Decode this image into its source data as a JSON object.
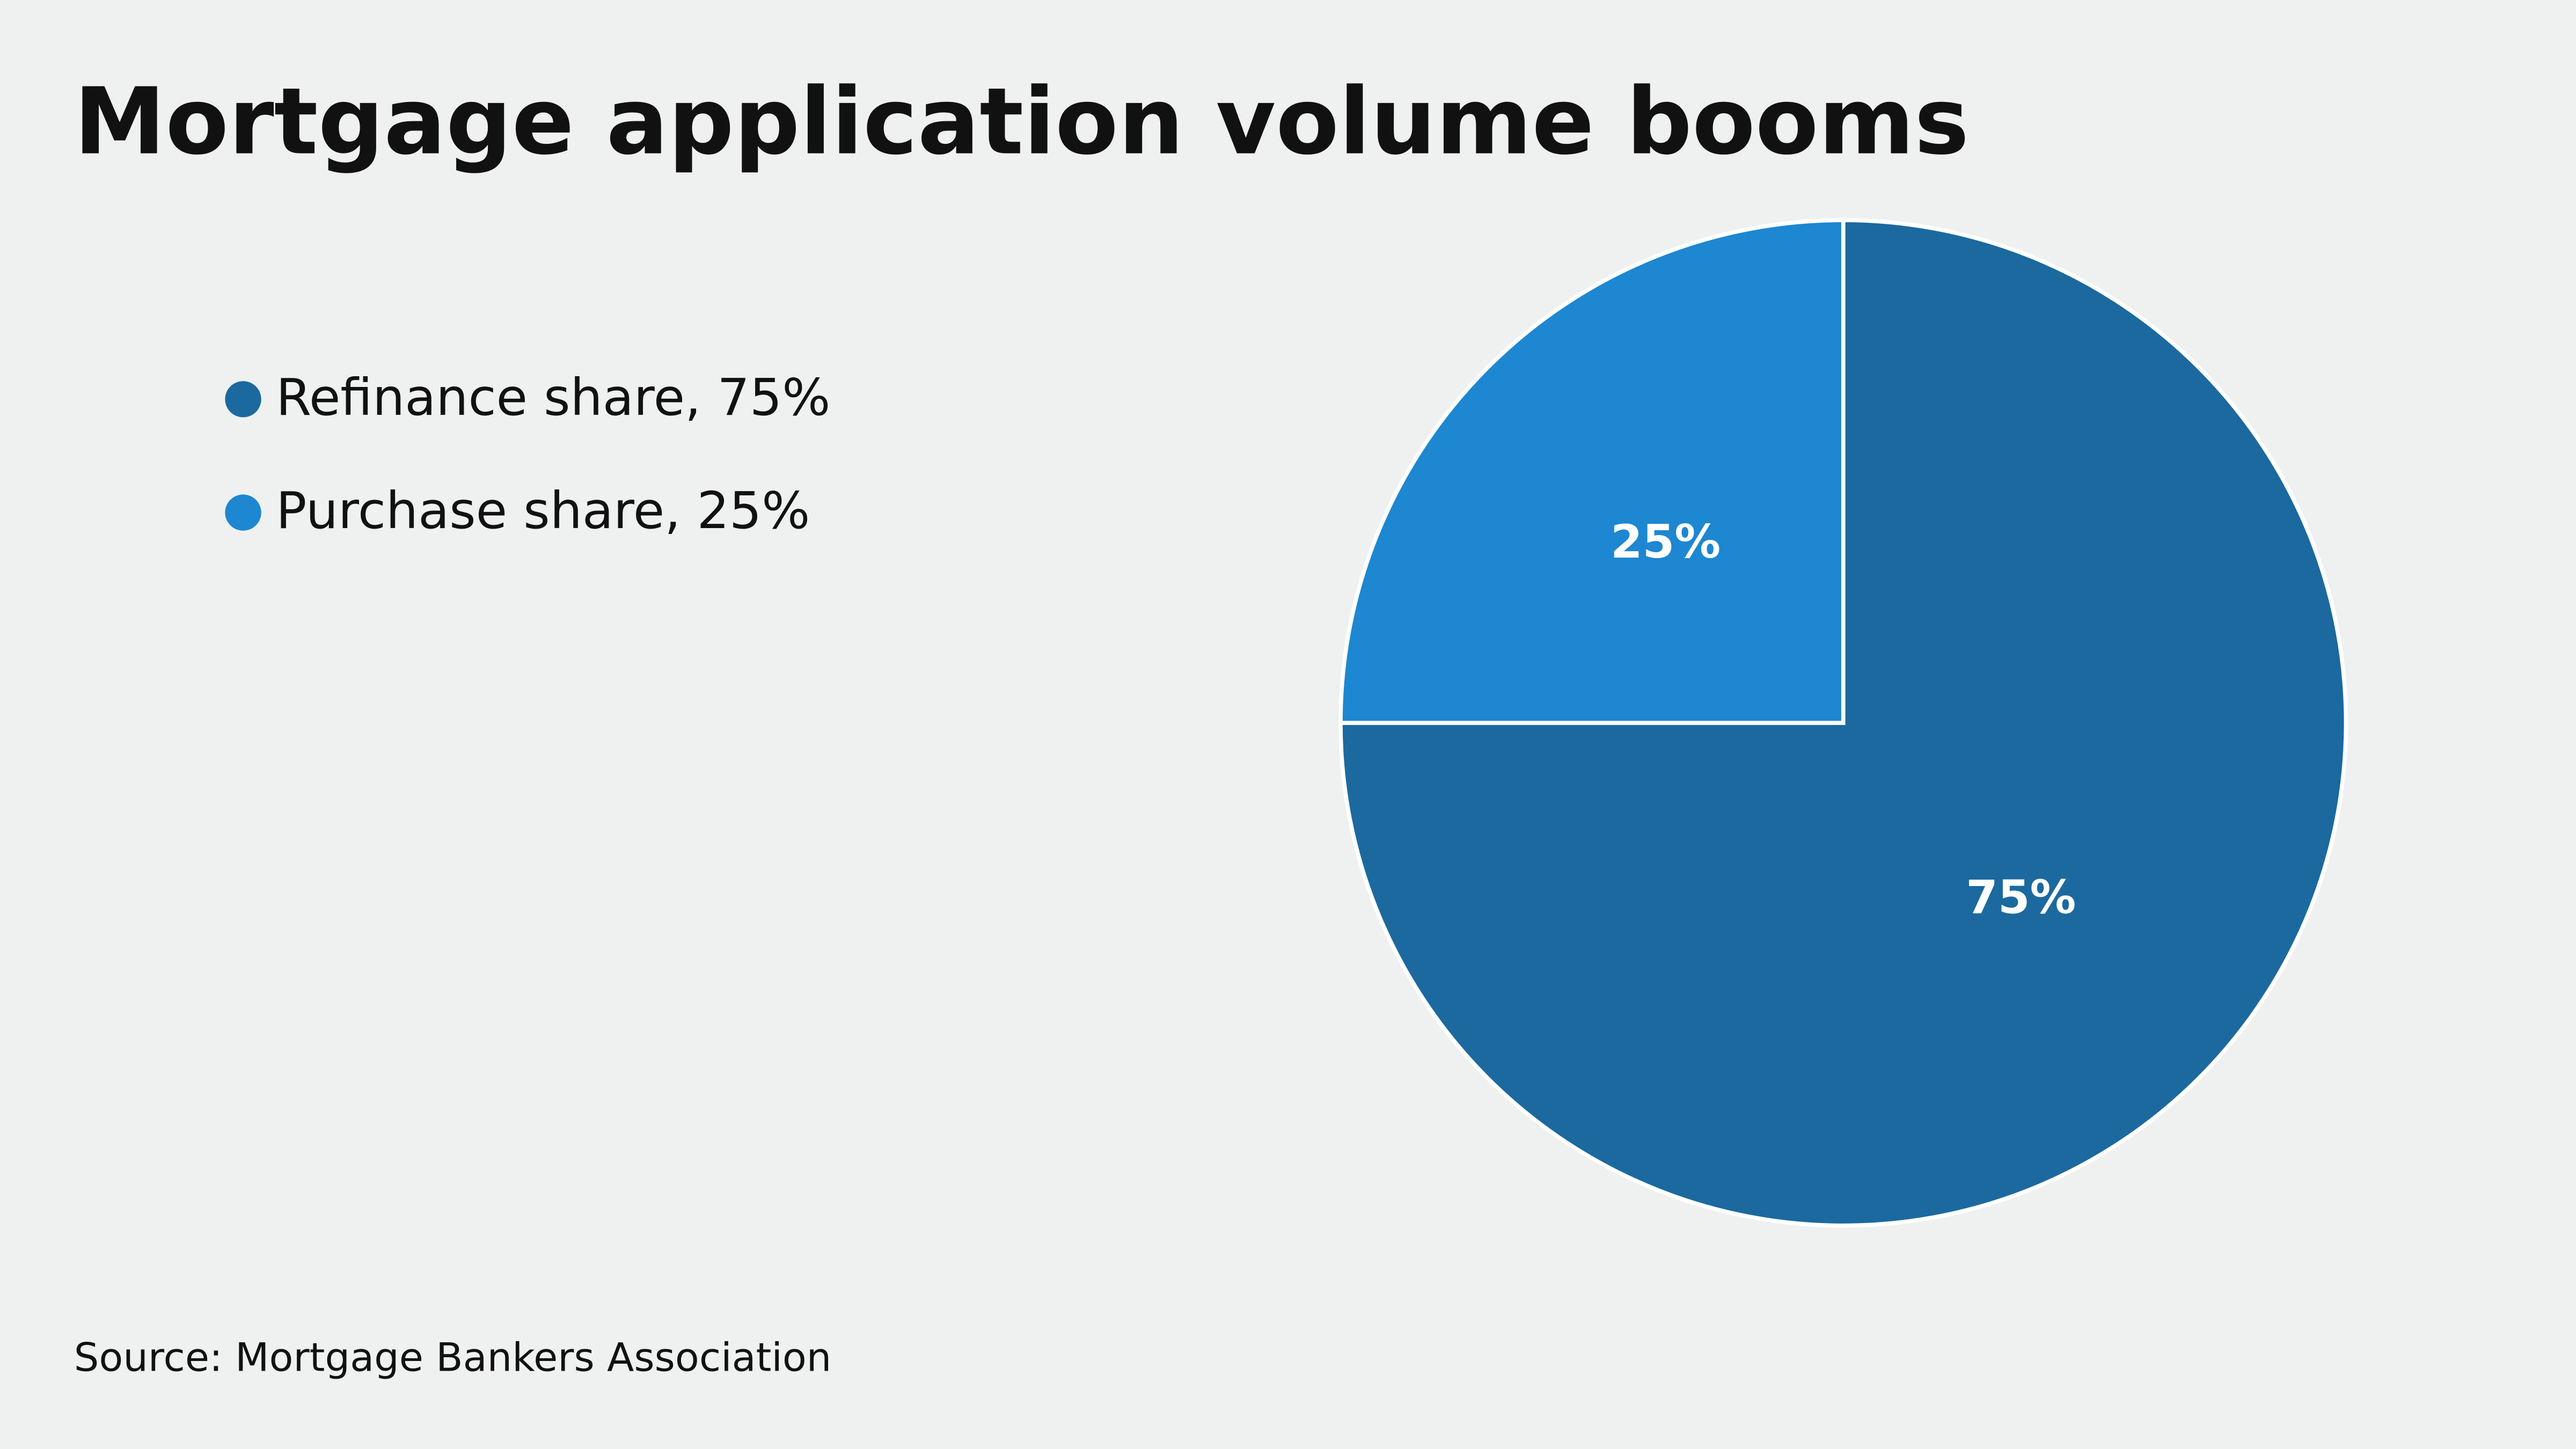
{
  "chart_data": {
    "type": "pie",
    "title": "Mortgage application volume booms",
    "categories": [
      "Refinance share, 75%",
      "Purchase share, 25%"
    ],
    "values": [
      75,
      25
    ],
    "value_labels": [
      "75%",
      "25%"
    ],
    "colors": [
      "#1b699f",
      "#1d87d1"
    ],
    "source": "Source: Mortgage Bankers Association"
  }
}
